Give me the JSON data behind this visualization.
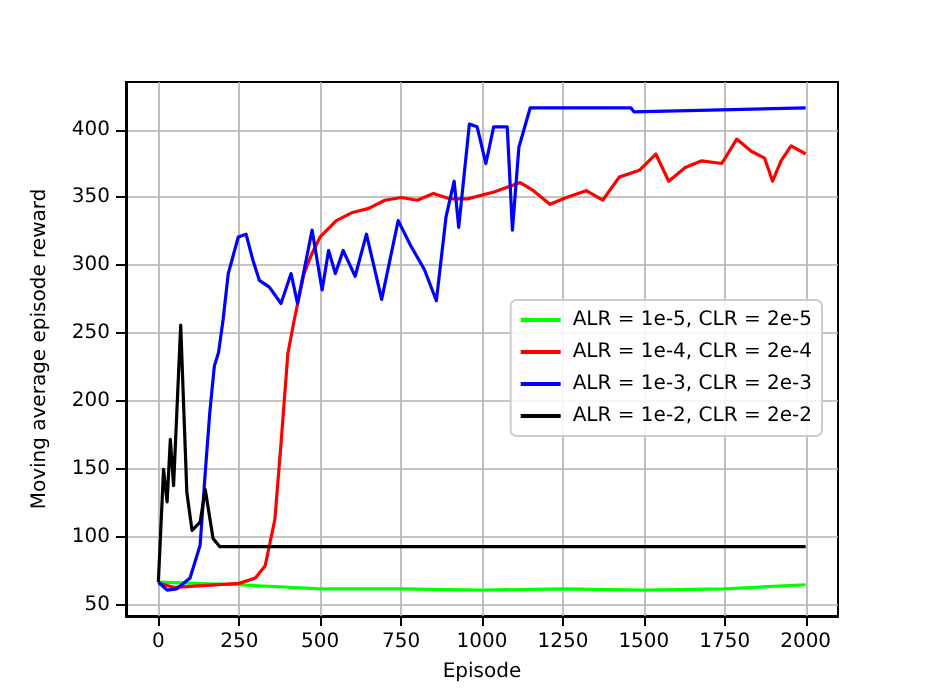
{
  "chart_data": {
    "type": "line",
    "xlabel": "Episode",
    "ylabel": "Moving average episode reward",
    "xlim": [
      -100,
      2100
    ],
    "ylim": [
      42,
      435
    ],
    "xticks": [
      0,
      250,
      500,
      750,
      1000,
      1250,
      1500,
      1750,
      2000
    ],
    "yticks": [
      50,
      100,
      150,
      200,
      250,
      300,
      350,
      400
    ],
    "grid": true,
    "legend": "right",
    "marker": "none",
    "line_style": "solid",
    "series": [
      {
        "name": "ALR = 1e-5, CLR = 2e-5",
        "color": "#00ff00",
        "x": [
          0,
          250,
          500,
          750,
          1000,
          1250,
          1500,
          1750,
          2000
        ],
        "values": [
          67,
          65,
          62,
          62,
          61,
          62,
          61,
          62,
          65
        ]
      },
      {
        "name": "ALR = 1e-4, CLR = 2e-4",
        "color": "#ff0000",
        "x": [
          0,
          50,
          250,
          300,
          330,
          360,
          380,
          400,
          420,
          450,
          475,
          500,
          550,
          600,
          650,
          700,
          750,
          800,
          850,
          900,
          955,
          1037,
          1118,
          1159,
          1210,
          1261,
          1322,
          1373,
          1424,
          1486,
          1537,
          1577,
          1628,
          1679,
          1741,
          1787,
          1832,
          1873,
          1898,
          1924,
          1955,
          2000
        ],
        "values": [
          66,
          63,
          66,
          70,
          79,
          113,
          172,
          235,
          260,
          294,
          309,
          321,
          333,
          339,
          342,
          348,
          350,
          348,
          353,
          349,
          349,
          354,
          361,
          355,
          345,
          350,
          355,
          348,
          365,
          370,
          382,
          362,
          372,
          377,
          375,
          393,
          384,
          379,
          362,
          377,
          388,
          382
        ]
      },
      {
        "name": "ALR = 1e-3, CLR = 2e-3",
        "color": "#0000ff",
        "x": [
          0,
          27,
          57,
          98,
          129,
          145,
          159,
          173,
          186,
          200,
          216,
          247,
          271,
          292,
          312,
          343,
          379,
          410,
          430,
          475,
          506,
          526,
          547,
          571,
          608,
          643,
          690,
          741,
          781,
          822,
          859,
          889,
          914,
          928,
          961,
          985,
          1012,
          1036,
          1078,
          1094,
          1114,
          1149,
          1460,
          1470,
          2000
        ],
        "values": [
          67,
          61,
          62,
          70,
          94,
          148,
          192,
          226,
          236,
          260,
          294,
          321,
          323,
          304,
          289,
          284,
          272,
          294,
          272,
          326,
          282,
          311,
          294,
          311,
          292,
          323,
          275,
          333,
          314,
          297,
          274,
          336,
          362,
          328,
          404,
          402,
          375,
          402,
          402,
          326,
          387,
          416,
          416,
          413,
          416
        ]
      },
      {
        "name": "ALR = 1e-2, CLR = 2e-2",
        "color": "#000000",
        "x": [
          0,
          16,
          27,
          37,
          47,
          69,
          88,
          104,
          129,
          145,
          169,
          190,
          2000
        ],
        "values": [
          67,
          150,
          126,
          172,
          138,
          256,
          133,
          105,
          111,
          135,
          99,
          93,
          93
        ]
      }
    ]
  }
}
